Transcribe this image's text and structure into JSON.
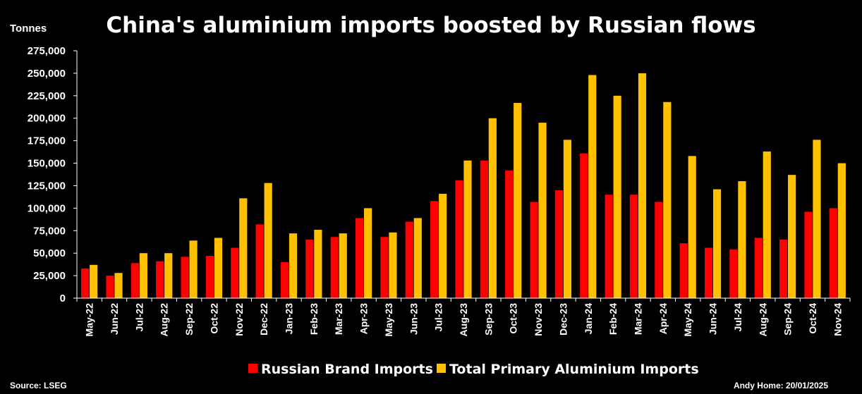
{
  "chart_data": {
    "type": "bar",
    "title": "China's aluminium imports boosted by Russian flows",
    "ylabel": "Tonnes",
    "ylim": [
      0,
      275000
    ],
    "yticks": [
      "0",
      "25,000",
      "50,000",
      "75,000",
      "100,000",
      "125,000",
      "150,000",
      "175,000",
      "200,000",
      "225,000",
      "250,000",
      "275,000"
    ],
    "categories": [
      "May-22",
      "Jun-22",
      "Jul-22",
      "Aug-22",
      "Sep-22",
      "Oct-22",
      "Nov-22",
      "Dec-22",
      "Jan-23",
      "Feb-23",
      "Mar-23",
      "Apr-23",
      "May-23",
      "Jun-23",
      "Jul-23",
      "Aug-23",
      "Sep-23",
      "Oct-23",
      "Nov-23",
      "Dec-23",
      "Jan-24",
      "Feb-24",
      "Mar-24",
      "Apr-24",
      "May-24",
      "Jun-24",
      "Jul-24",
      "Aug-24",
      "Sep-24",
      "Oct-24",
      "Nov-24"
    ],
    "series": [
      {
        "name": "Russian Brand Imports",
        "color": "#ff0000",
        "values": [
          33000,
          25000,
          39000,
          41000,
          46000,
          47000,
          56000,
          82000,
          40000,
          65000,
          68000,
          89000,
          68000,
          85000,
          108000,
          131000,
          153000,
          142000,
          107000,
          120000,
          161000,
          115000,
          115000,
          107000,
          61000,
          56000,
          54000,
          67000,
          65000,
          96000,
          100000
        ]
      },
      {
        "name": "Total Primary Aluminium Imports",
        "color": "#ffc000",
        "values": [
          37000,
          28000,
          50000,
          50000,
          64000,
          67000,
          111000,
          128000,
          72000,
          76000,
          72000,
          100000,
          73000,
          89000,
          116000,
          153000,
          200000,
          217000,
          195000,
          176000,
          248000,
          225000,
          250000,
          218000,
          158000,
          121000,
          130000,
          163000,
          137000,
          176000,
          150000
        ]
      }
    ],
    "legend_position": "bottom",
    "grid": false,
    "source": "Source: LSEG",
    "credit": "Andy Home: 20/01/2025"
  }
}
